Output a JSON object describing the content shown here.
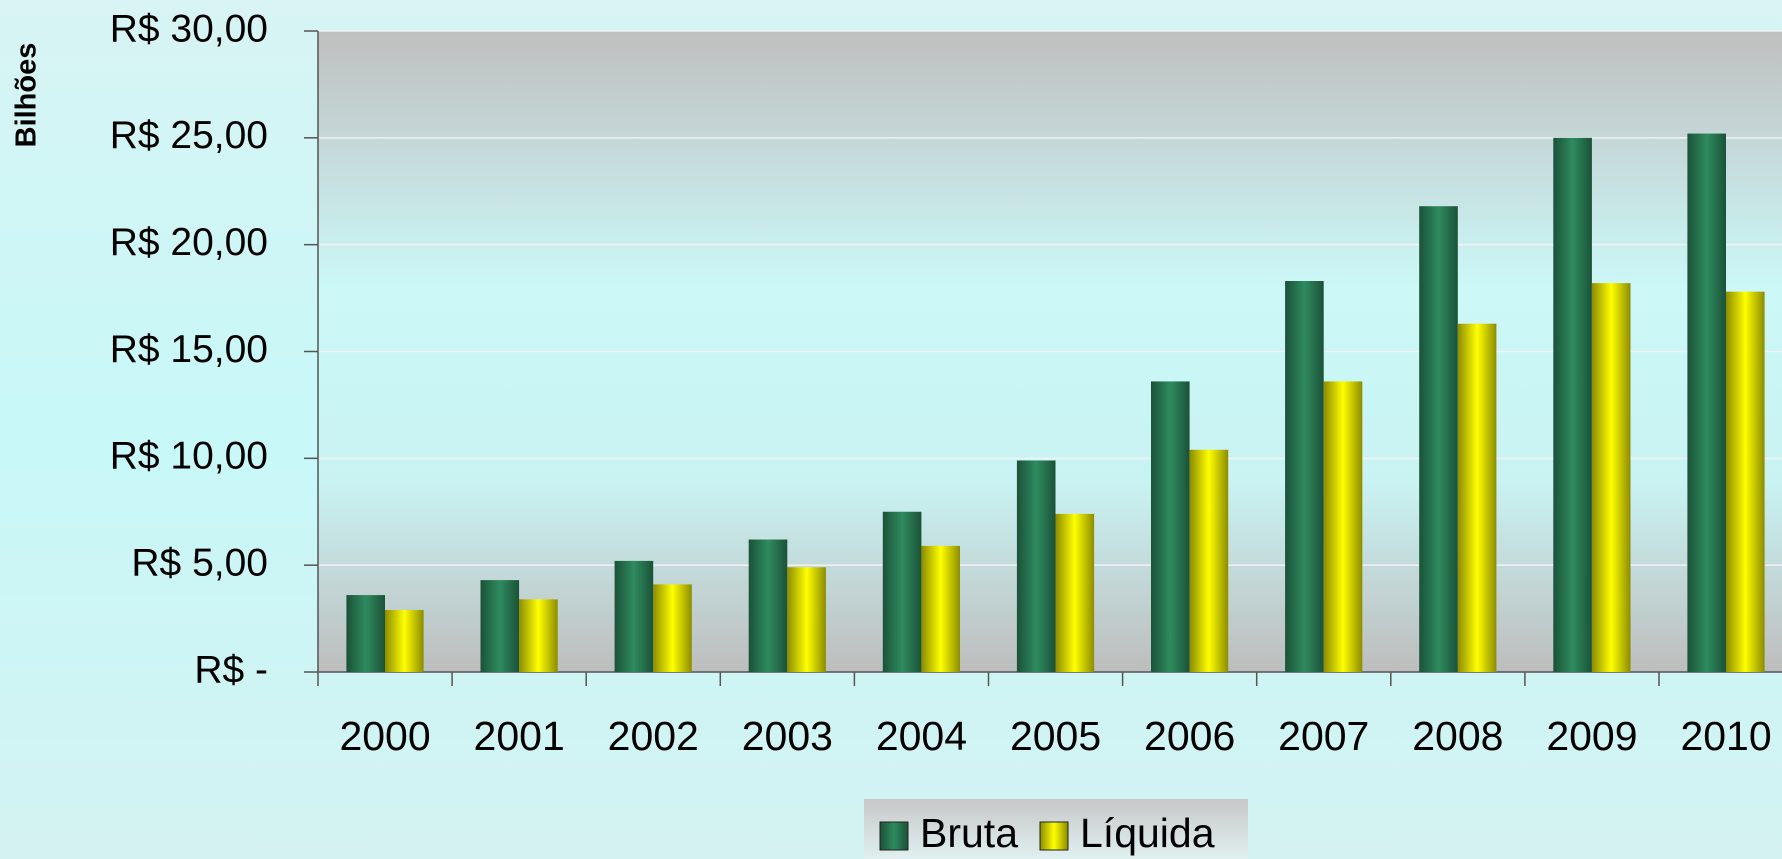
{
  "chart_data": {
    "type": "bar",
    "y_label": "Bilhões",
    "categories": [
      "2000",
      "2001",
      "2002",
      "2003",
      "2004",
      "2005",
      "2006",
      "2007",
      "2008",
      "2009",
      "2010"
    ],
    "series": [
      {
        "name": "Bruta",
        "color": "#2e8b5f",
        "values": [
          3.6,
          4.3,
          5.2,
          6.2,
          7.5,
          9.9,
          13.6,
          18.3,
          21.8,
          25.0,
          25.2
        ]
      },
      {
        "name": "Líquida",
        "color": "#ffff00",
        "values": [
          2.9,
          3.4,
          4.1,
          4.9,
          5.9,
          7.4,
          10.4,
          13.6,
          16.3,
          18.2,
          17.8
        ]
      }
    ],
    "ylim": [
      0,
      30
    ],
    "yticks": [
      {
        "value": 0,
        "label": "R$ -"
      },
      {
        "value": 5,
        "label": "R$ 5,00"
      },
      {
        "value": 10,
        "label": "R$ 10,00"
      },
      {
        "value": 15,
        "label": "R$ 15,00"
      },
      {
        "value": 20,
        "label": "R$ 20,00"
      },
      {
        "value": 25,
        "label": "R$ 25,00"
      },
      {
        "value": 30,
        "label": "R$ 30,00"
      }
    ],
    "grid": true,
    "legend": "bottom"
  }
}
